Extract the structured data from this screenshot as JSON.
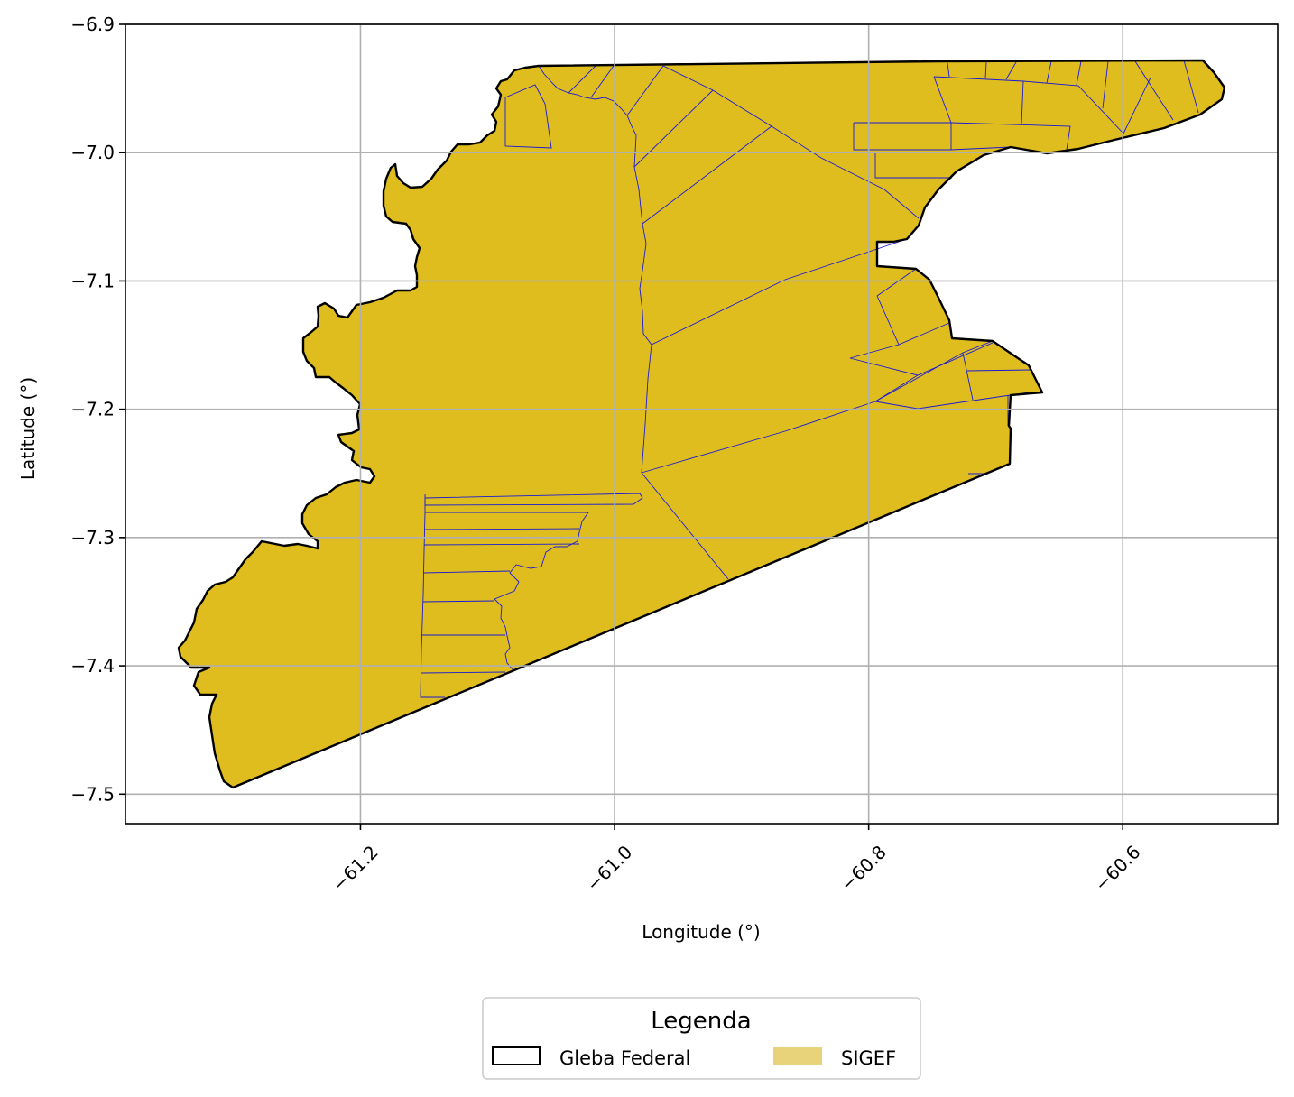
{
  "map": {
    "xlabel": "Longitude (°)",
    "ylabel": "Latitude (°)",
    "x_ticks": [
      "−61.2",
      "−61.0",
      "−60.8",
      "−60.6"
    ],
    "y_ticks": [
      "−6.9",
      "−7.0",
      "−7.1",
      "−7.2",
      "−7.3",
      "−7.4",
      "−7.5"
    ],
    "xlim": [
      -61.385,
      -60.478
    ],
    "ylim": [
      -7.523,
      -6.9
    ],
    "grid": true
  },
  "legend": {
    "title": "Legenda",
    "placement": "bottom-center",
    "items": [
      {
        "label": "Gleba Federal",
        "style": "outline",
        "edge_color": "#000000"
      },
      {
        "label": "SIGEF",
        "style": "fill",
        "fill_color": "#e8d37a"
      }
    ]
  },
  "colors": {
    "fill": "#dfbd1f",
    "parcel_edge": "#1a1ad6",
    "boundary": "#000000",
    "grid": "#b0b0b0"
  }
}
